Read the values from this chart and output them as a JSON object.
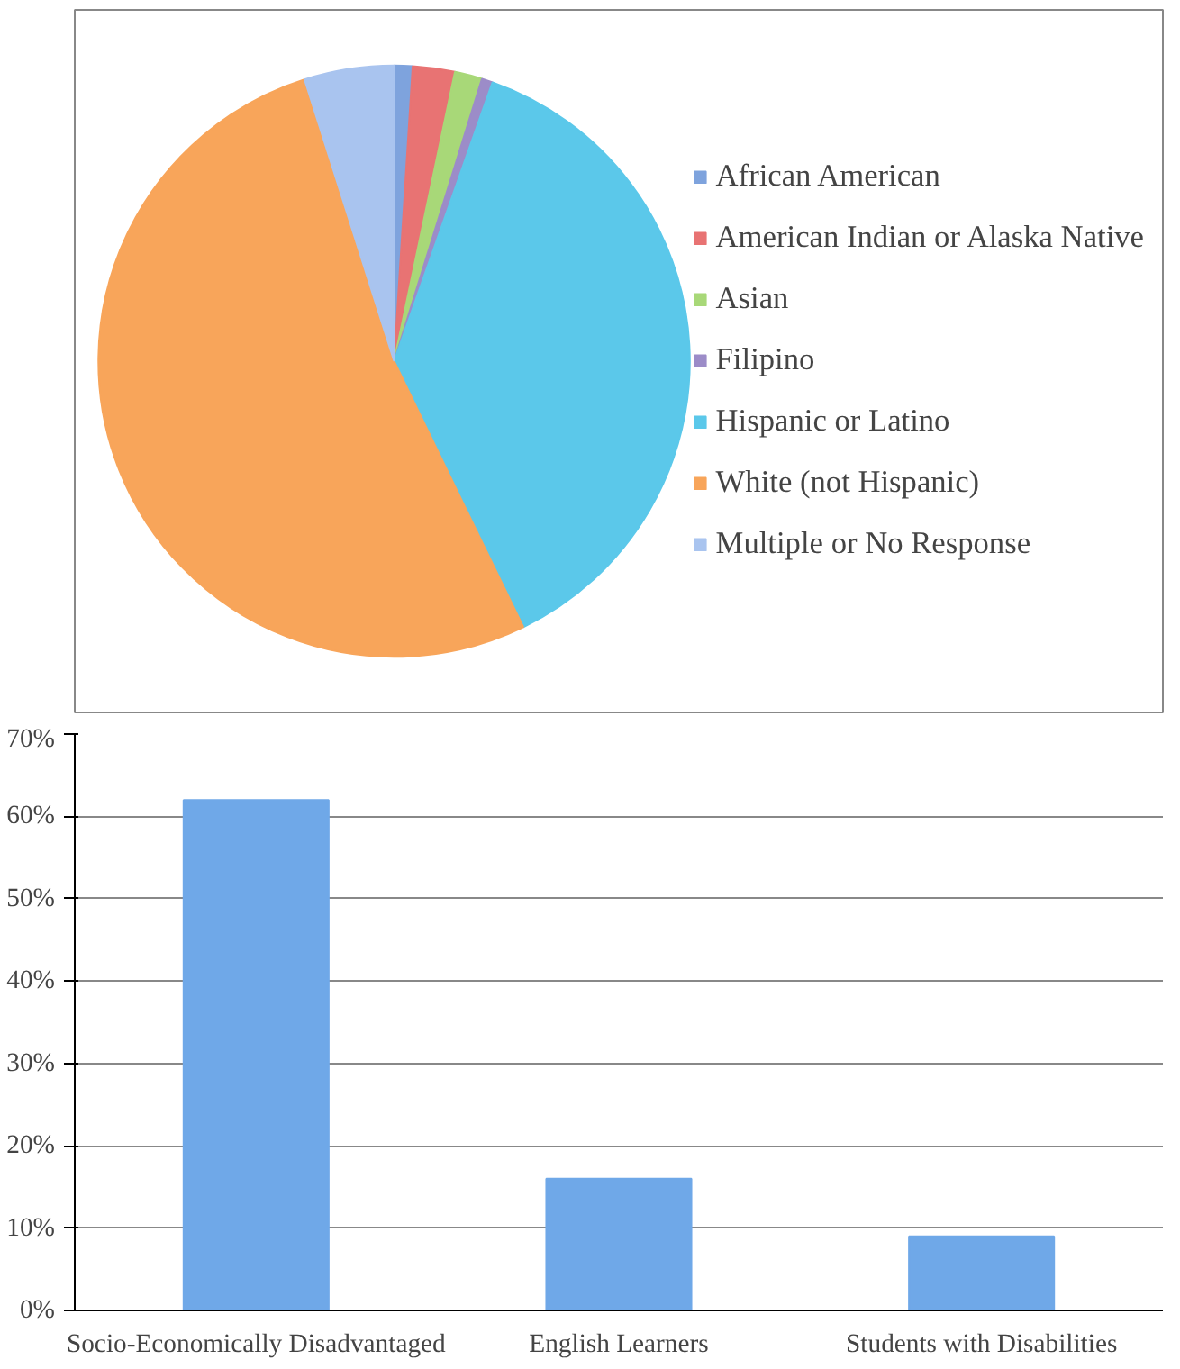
{
  "chart_data": [
    {
      "type": "pie",
      "categories": [
        "African American",
        "American Indian or Alaska Native",
        "Asian",
        "Filipino",
        "Hispanic or Latino",
        "White (not Hispanic)",
        "Multiple or No Response"
      ],
      "values": [
        1.0,
        2.3,
        1.5,
        0.6,
        37.4,
        52.3,
        4.9
      ],
      "colors": [
        "#7ea3dd",
        "#e87373",
        "#a8d878",
        "#9c8cc8",
        "#5bc8ea",
        "#f8a55a",
        "#a9c4ef"
      ],
      "legend": "right"
    },
    {
      "type": "bar",
      "categories": [
        "Socio-Economically Disadvantaged",
        "English Learners",
        "Students with Disabilities"
      ],
      "values": [
        62,
        16,
        9
      ],
      "color": "#6fa8e8",
      "ylim": [
        0,
        70
      ],
      "yticks": [
        {
          "value": 0,
          "label": "0%"
        },
        {
          "value": 10,
          "label": "10%"
        },
        {
          "value": 20,
          "label": "20%"
        },
        {
          "value": 30,
          "label": "30%"
        },
        {
          "value": 40,
          "label": "40%"
        },
        {
          "value": 50,
          "label": "50%"
        },
        {
          "value": 60,
          "label": "60%"
        },
        {
          "value": 70,
          "label": "70%"
        }
      ],
      "grid": "y"
    }
  ]
}
